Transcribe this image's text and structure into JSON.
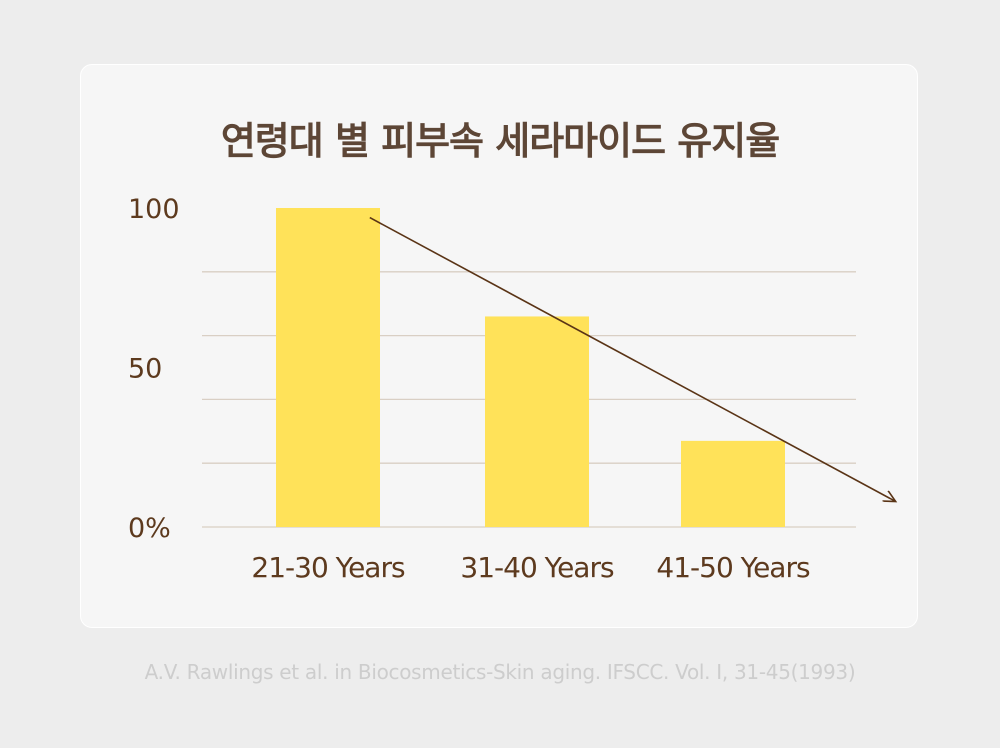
{
  "title": "연령대 별 피부속 세라마이드 유지율",
  "source": "A.V. Rawlings et al. in Biocosmetics-Skin aging. IFSCC. Vol. I, 31-45(1993)",
  "colors": {
    "bar": "#ffe259",
    "grid": "#d9cfc4",
    "text": "#5d3a1e",
    "arrow": "#5a3416",
    "title": "#5d4636"
  },
  "chart_data": {
    "type": "bar",
    "title": "연령대 별 피부속 세라마이드 유지율",
    "categories": [
      "21-30 Years",
      "31-40 Years",
      "41-50 Years"
    ],
    "values": [
      100,
      66,
      27
    ],
    "ylim": [
      0,
      100
    ],
    "yticks": [
      {
        "value": 100,
        "label": "100"
      },
      {
        "value": 50,
        "label": "50"
      },
      {
        "value": 0,
        "label": "0%"
      }
    ],
    "gridlines": [
      0,
      20,
      40,
      60,
      80
    ],
    "grid": true,
    "trend_arrow": {
      "from": [
        0.2,
        97
      ],
      "to": [
        2.83,
        8
      ]
    }
  }
}
